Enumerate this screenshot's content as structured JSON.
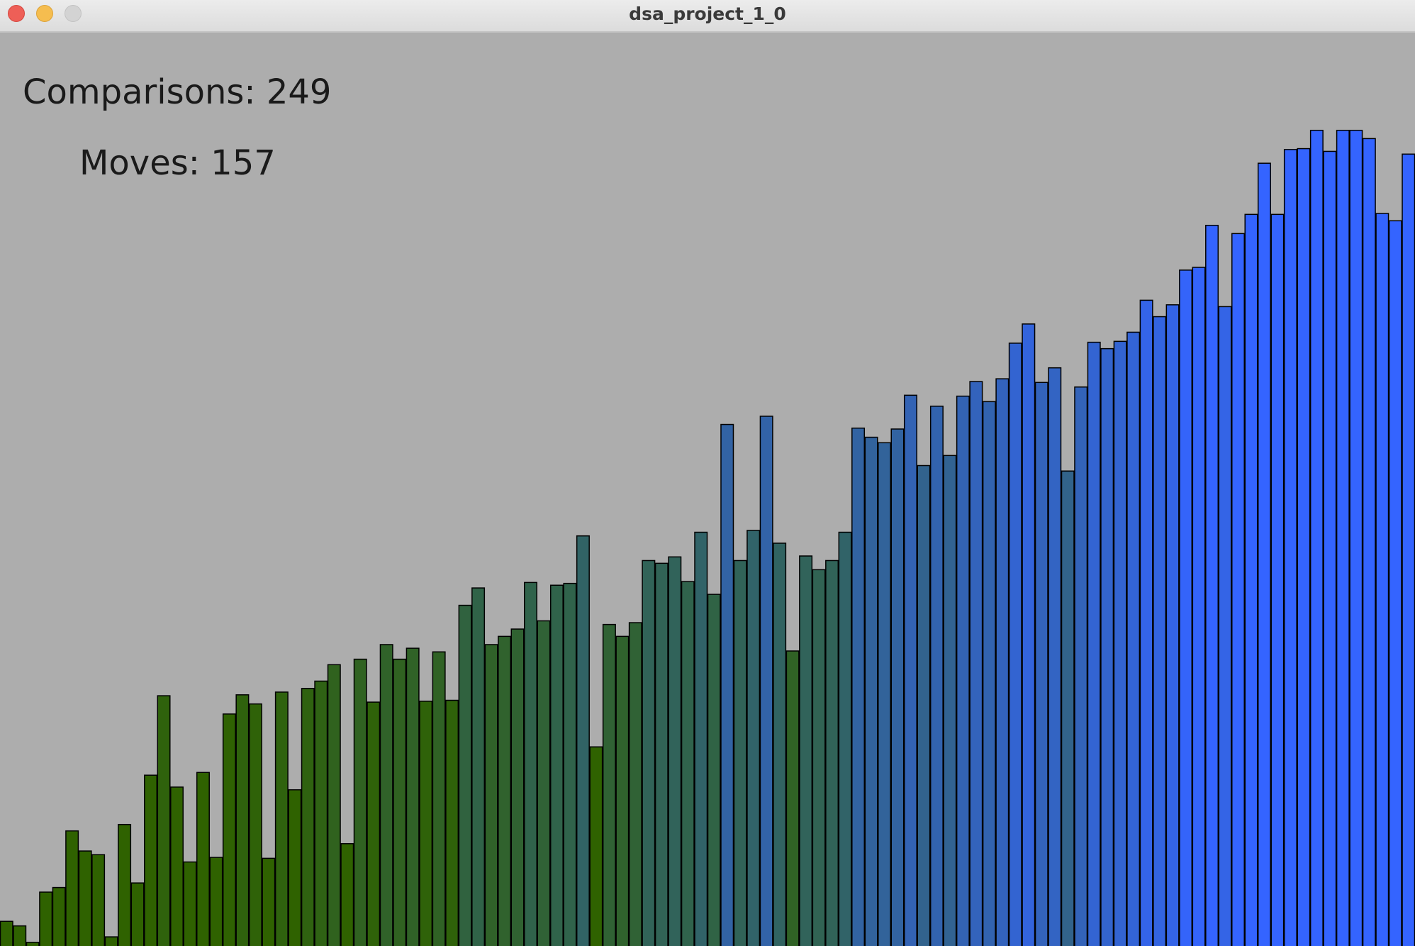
{
  "window": {
    "title": "dsa_project_1_0"
  },
  "stats": {
    "comparisons": "Comparisons: 249",
    "moves": "Moves: 157"
  },
  "colors": {
    "background": "#adadad",
    "bar_outline": "#000000",
    "bar_low": "#2f6200",
    "bar_high": "#3464ff"
  },
  "chart_data": {
    "type": "bar",
    "description_free": true,
    "value_max": 1000,
    "values": [
      27,
      22,
      4,
      59,
      64,
      126,
      104,
      100,
      10,
      133,
      69,
      187,
      274,
      174,
      92,
      190,
      97,
      254,
      275,
      265,
      96,
      278,
      171,
      282,
      290,
      308,
      112,
      314,
      267,
      330,
      314,
      326,
      268,
      322,
      269,
      373,
      392,
      330,
      339,
      347,
      398,
      356,
      395,
      397,
      449,
      218,
      352,
      339,
      354,
      422,
      419,
      426,
      399,
      453,
      385,
      571,
      422,
      455,
      580,
      441,
      323,
      427,
      412,
      422,
      453,
      567,
      557,
      551,
      566,
      603,
      526,
      591,
      537,
      602,
      618,
      596,
      621,
      660,
      681,
      617,
      633,
      520,
      612,
      661,
      654,
      662,
      672,
      707,
      689,
      702,
      740,
      743,
      789,
      700,
      780,
      801,
      857,
      801,
      872,
      873,
      893,
      870,
      893,
      893,
      884,
      802,
      794,
      867
    ]
  }
}
